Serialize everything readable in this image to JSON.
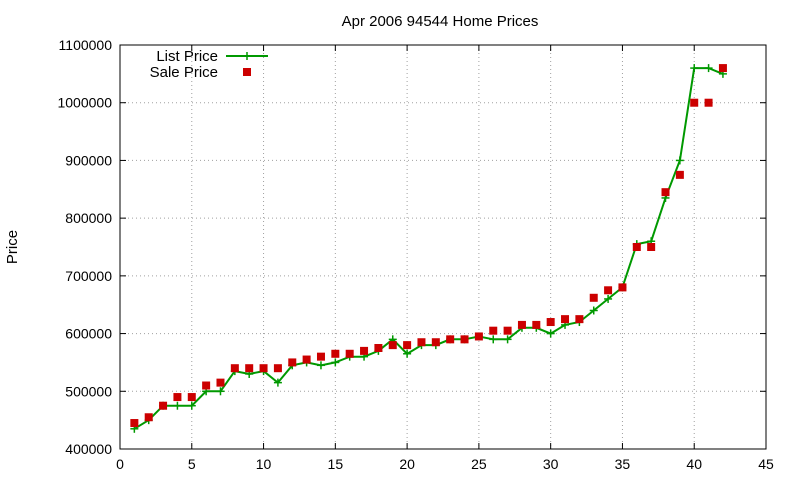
{
  "chart_data": {
    "type": "line",
    "title": "Apr 2006 94544 Home Prices",
    "xlabel": "",
    "ylabel": "Price",
    "xlim": [
      0,
      45
    ],
    "ylim": [
      400000,
      1100000
    ],
    "x_ticks": [
      "0",
      "5",
      "10",
      "15",
      "20",
      "25",
      "30",
      "35",
      "40",
      "45"
    ],
    "y_ticks": [
      "400000",
      "500000",
      "600000",
      "700000",
      "800000",
      "900000",
      "1000000",
      "1100000"
    ],
    "grid": true,
    "legend_position": "top-left",
    "x": [
      1,
      2,
      3,
      4,
      5,
      6,
      7,
      8,
      9,
      10,
      11,
      12,
      13,
      14,
      15,
      16,
      17,
      18,
      19,
      20,
      21,
      22,
      23,
      24,
      25,
      26,
      27,
      28,
      29,
      30,
      31,
      32,
      33,
      34,
      35,
      36,
      37,
      38,
      39,
      40,
      41,
      42
    ],
    "series": [
      {
        "name": "List Price",
        "style": "line-points",
        "color": "#009900",
        "values": [
          435000,
          450000,
          475000,
          475000,
          475000,
          500000,
          500000,
          535000,
          530000,
          535000,
          515000,
          545000,
          550000,
          545000,
          550000,
          560000,
          560000,
          570000,
          590000,
          565000,
          580000,
          580000,
          590000,
          590000,
          595000,
          590000,
          590000,
          610000,
          610000,
          600000,
          615000,
          620000,
          640000,
          660000,
          680000,
          755000,
          760000,
          835000,
          900000,
          1060000,
          1060000,
          1050000
        ]
      },
      {
        "name": "Sale Price",
        "style": "points",
        "color": "#cc0000",
        "values": [
          445000,
          455000,
          475000,
          490000,
          490000,
          510000,
          515000,
          540000,
          540000,
          540000,
          540000,
          550000,
          555000,
          560000,
          565000,
          565000,
          570000,
          575000,
          580000,
          580000,
          585000,
          585000,
          590000,
          590000,
          595000,
          605000,
          605000,
          615000,
          615000,
          620000,
          625000,
          625000,
          662000,
          675000,
          680000,
          750000,
          750000,
          845000,
          875000,
          1000000,
          1000000,
          1060000
        ]
      }
    ]
  }
}
